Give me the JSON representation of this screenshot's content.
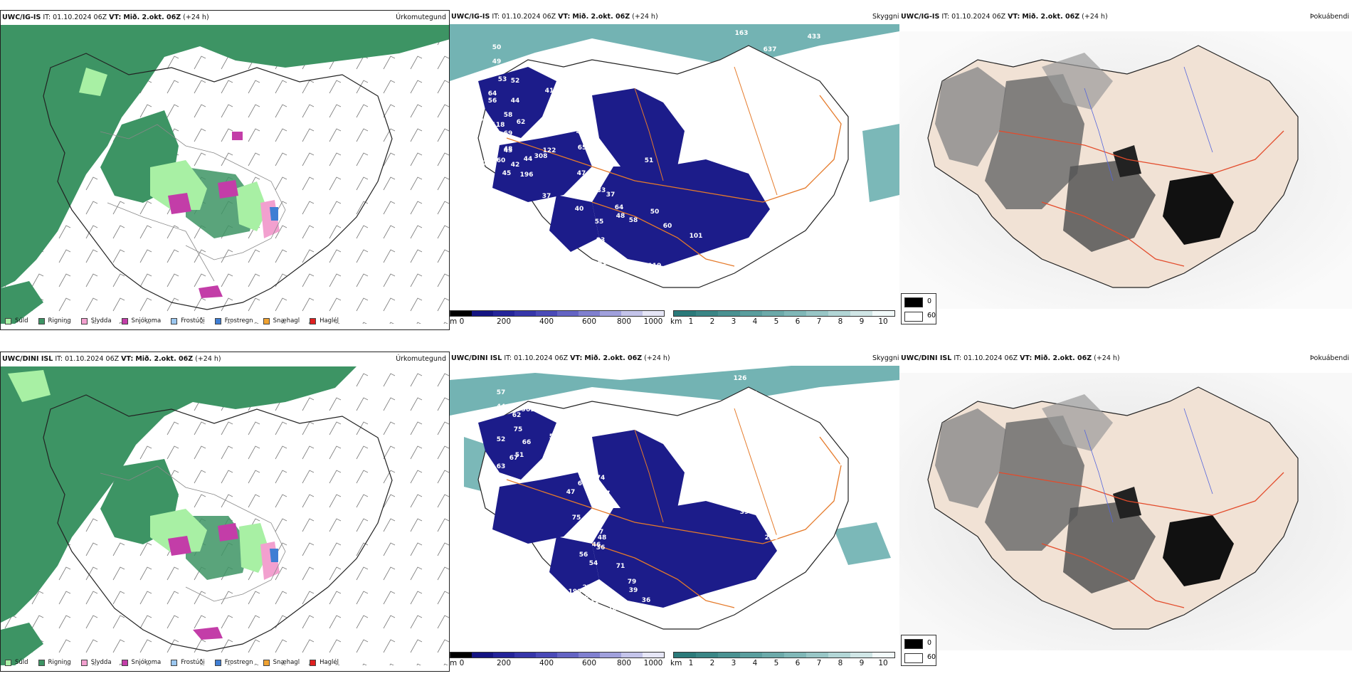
{
  "colors": {
    "rain": "#3d9464",
    "drizzle": "#a8f0a4",
    "sleet": "#f2a0cf",
    "snow": "#c33da8",
    "freezing_drizzle": "#9bc7f0",
    "freezing_rain": "#3f7ed4",
    "snow_hail": "#f0a232",
    "hail": "#e02020",
    "cloud_dark": "#1c1c8a",
    "visibility_teal": "#5aa6a6",
    "road_orange": "#e57a2a",
    "land_beige": "#f1e2d5"
  },
  "rows": [
    {
      "precip": {
        "model": "UWC/IG-IS",
        "it_label": "IT:",
        "it_value": "01.10.2024 06Z",
        "vt_label": "VT:",
        "vt_value": "Mið. 2.okt. 06Z",
        "lead": "(+24 h)",
        "title": "Úrkomutegund"
      },
      "cloud": {
        "model": "UWC/IG-IS",
        "it_label": "IT:",
        "it_value": "01.10.2024 06Z",
        "vt_label": "VT:",
        "vt_value": "Mið. 2.okt. 06Z",
        "lead": "(+24 h)",
        "title": "Skyggni",
        "labels": [
          "50",
          "49",
          "53",
          "52",
          "64",
          "56",
          "44",
          "58",
          "126",
          "62",
          "118",
          "69",
          "52",
          "43",
          "40",
          "39",
          "60",
          "42",
          "45",
          "196",
          "308",
          "44",
          "48",
          "122",
          "41",
          "50",
          "59",
          "46",
          "44",
          "65",
          "51",
          "47",
          "36",
          "33",
          "37",
          "31",
          "40",
          "64",
          "58",
          "55",
          "83",
          "62",
          "61",
          "41",
          "38",
          "38",
          "48",
          "50",
          "60",
          "101",
          "119",
          "163",
          "637",
          "433",
          "37",
          "58",
          "176",
          "99",
          "74"
        ]
      },
      "fog": {
        "model": "UWC/IG-IS",
        "it_label": "IT:",
        "it_value": "01.10.2024 06Z",
        "vt_label": "VT:",
        "vt_value": "Mið. 2.okt. 06Z",
        "lead": "(+24 h)",
        "title": "Þokuábendi"
      }
    },
    {
      "precip": {
        "model": "UWC/DINI ISL",
        "it_label": "IT:",
        "it_value": "01.10.2024 06Z",
        "vt_label": "VT:",
        "vt_value": "Mið. 2.okt. 06Z",
        "lead": "(+24 h)",
        "title": "Úrkomutegund"
      },
      "cloud": {
        "model": "UWC/DINI ISL",
        "it_label": "IT:",
        "it_value": "01.10.2024 06Z",
        "vt_label": "VT:",
        "vt_value": "Mið. 2.okt. 06Z",
        "lead": "(+24 h)",
        "title": "Skyggni",
        "labels": [
          "57",
          "44",
          "961",
          "62",
          "75",
          "52",
          "66",
          "51",
          "53",
          "67",
          "63",
          "83",
          "47",
          "50",
          "52",
          "42",
          "44",
          "66",
          "74",
          "47",
          "127",
          "68",
          "75",
          "115",
          "77",
          "48",
          "46",
          "36",
          "56",
          "54",
          "71",
          "79",
          "39",
          "31",
          "36",
          "58",
          "80",
          "79",
          "71",
          "132",
          "144",
          "92",
          "51",
          "109",
          "199",
          "52",
          "64",
          "52",
          "278",
          "393",
          "235",
          "126",
          "131",
          "189",
          "31",
          "38",
          "47",
          "228",
          "39"
        ]
      },
      "fog": {
        "model": "UWC/DINI ISL",
        "it_label": "IT:",
        "it_value": "01.10.2024 06Z",
        "vt_label": "VT:",
        "vt_value": "Mið. 2.okt. 06Z",
        "lead": "(+24 h)",
        "title": "Þokuábendi"
      }
    }
  ],
  "precip_legend": [
    "Súld",
    "Rigning",
    "Slydda",
    "Snjókoma",
    "Frostúði",
    "Frostregn",
    "Snæhagl",
    "Haglél"
  ],
  "cloud_colorbar": {
    "unit": "m",
    "ticks": [
      "0",
      "200",
      "400",
      "600",
      "800",
      "1000"
    ]
  },
  "visibility_colorbar": {
    "unit": "km",
    "ticks": [
      "1",
      "2",
      "3",
      "4",
      "5",
      "6",
      "7",
      "8",
      "9",
      "10"
    ]
  },
  "fog_legend": {
    "high": "0",
    "low": "60"
  }
}
